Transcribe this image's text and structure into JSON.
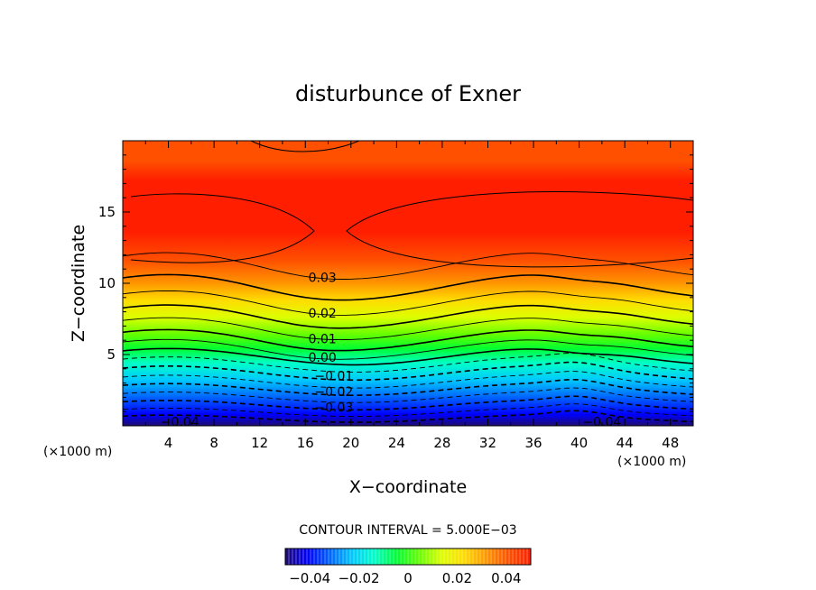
{
  "chart_data": {
    "type": "heatmap",
    "title": "disturbunce of Exner",
    "xlabel": "X−coordinate",
    "ylabel": "Z−coordinate",
    "x_unit": "(×1000 m)",
    "y_unit": "(×1000 m)",
    "xlim": [
      0,
      50
    ],
    "ylim": [
      0,
      20
    ],
    "x_ticks": [
      4,
      8,
      12,
      16,
      20,
      24,
      28,
      32,
      36,
      40,
      44,
      48
    ],
    "y_ticks": [
      5,
      10,
      15
    ],
    "colorscale": [
      "#1e0a6e",
      "#0000ff",
      "#0064ff",
      "#00c8ff",
      "#00ffc8",
      "#00ff32",
      "#64ff00",
      "#dcff00",
      "#ffdc00",
      "#ff9600",
      "#ff5000",
      "#ff1e00"
    ],
    "contour_levels": [
      -0.04,
      -0.035,
      -0.03,
      -0.025,
      -0.02,
      -0.015,
      -0.01,
      -0.005,
      0.0,
      0.005,
      0.01,
      0.015,
      0.02,
      0.025,
      0.03,
      0.035
    ],
    "contour_labels": [
      {
        "text": "0.03",
        "x": 17.5,
        "z": 10.4
      },
      {
        "text": "0.02",
        "x": 17.5,
        "z": 7.9
      },
      {
        "text": "0.01",
        "x": 17.5,
        "z": 6.1
      },
      {
        "text": "0.00",
        "x": 17.5,
        "z": 4.8
      },
      {
        "text": "−0.01",
        "x": 18.5,
        "z": 3.5
      },
      {
        "text": "−0.02",
        "x": 18.5,
        "z": 2.4
      },
      {
        "text": "−0.03",
        "x": 18.5,
        "z": 1.3
      },
      {
        "text": "−0.04",
        "x": 5.0,
        "z": 0.3
      },
      {
        "text": "−0.04",
        "x": 42.0,
        "z": 0.3
      }
    ],
    "contour_interval_text": "CONTOUR INTERVAL = 5.000E−03",
    "colorbar_ticks": [
      "−0.04",
      "−0.02",
      "0",
      "0.02",
      "0.04"
    ],
    "colorbar_range": [
      -0.05,
      0.05
    ]
  }
}
